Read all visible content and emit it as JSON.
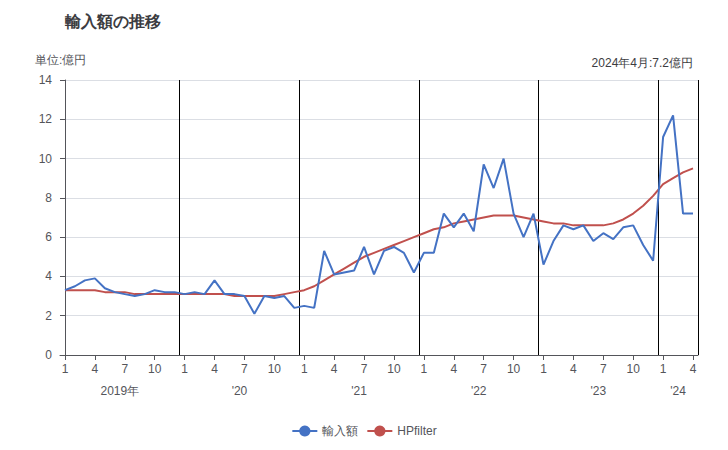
{
  "chart_data": {
    "type": "line",
    "title": "輸入額の推移",
    "ylabel": "単位:億円",
    "annotation": "2024年4月:7.2億円",
    "categories": [
      "1",
      null,
      null,
      "4",
      null,
      null,
      "7",
      null,
      null,
      "10",
      null,
      null,
      "1",
      null,
      null,
      "4",
      null,
      null,
      "7",
      null,
      null,
      "10",
      null,
      null,
      "1",
      null,
      null,
      "4",
      null,
      null,
      "7",
      null,
      null,
      "10",
      null,
      null,
      "1",
      null,
      null,
      "4",
      null,
      null,
      "7",
      null,
      null,
      "10",
      null,
      null,
      "1",
      null,
      null,
      "4",
      null,
      null,
      "7",
      null,
      null,
      "10",
      null,
      null,
      "1",
      null,
      null,
      "4"
    ],
    "year_labels": [
      "2019年",
      "2019年",
      "2019年",
      "2019年",
      "2019年",
      "2019年",
      "2019年",
      "2019年",
      "2019年",
      "2019年",
      "2019年",
      "2019年",
      "'20",
      "'20",
      "'20",
      "'20",
      "'20",
      "'20",
      "'20",
      "'20",
      "'20",
      "'20",
      "'20",
      "'20",
      "'21",
      "'21",
      "'21",
      "'21",
      "'21",
      "'21",
      "'21",
      "'21",
      "'21",
      "'21",
      "'21",
      "'21",
      "'22",
      "'22",
      "'22",
      "'22",
      "'22",
      "'22",
      "'22",
      "'22",
      "'22",
      "'22",
      "'22",
      "'22",
      "'23",
      "'23",
      "'23",
      "'23",
      "'23",
      "'23",
      "'23",
      "'23",
      "'23",
      "'23",
      "'23",
      "'23",
      "'24",
      "'24",
      "'24",
      "'24"
    ],
    "series": [
      {
        "name": "輸入額",
        "color": "#4472C4",
        "values": [
          3.3,
          3.5,
          3.8,
          3.9,
          3.4,
          3.2,
          3.1,
          3.0,
          3.1,
          3.3,
          3.2,
          3.2,
          3.1,
          3.2,
          3.1,
          3.8,
          3.1,
          3.1,
          3.0,
          2.1,
          3.0,
          2.9,
          3.0,
          2.4,
          2.5,
          2.4,
          5.3,
          4.1,
          4.2,
          4.3,
          5.5,
          4.1,
          5.3,
          5.5,
          5.2,
          4.2,
          5.2,
          5.2,
          7.2,
          6.5,
          7.2,
          6.3,
          9.7,
          8.5,
          10.0,
          7.2,
          6.0,
          7.2,
          4.6,
          5.8,
          6.6,
          6.4,
          6.6,
          5.8,
          6.2,
          5.9,
          6.5,
          6.6,
          5.6,
          4.8,
          11.1,
          12.2,
          7.2,
          7.2
        ]
      },
      {
        "name": "HPfilter",
        "color": "#C0504D",
        "values": [
          3.3,
          3.3,
          3.3,
          3.3,
          3.2,
          3.2,
          3.2,
          3.1,
          3.1,
          3.1,
          3.1,
          3.1,
          3.1,
          3.1,
          3.1,
          3.1,
          3.1,
          3.0,
          3.0,
          3.0,
          3.0,
          3.0,
          3.1,
          3.2,
          3.3,
          3.5,
          3.8,
          4.1,
          4.4,
          4.7,
          5.0,
          5.2,
          5.4,
          5.6,
          5.8,
          6.0,
          6.2,
          6.4,
          6.5,
          6.7,
          6.8,
          6.9,
          7.0,
          7.1,
          7.1,
          7.1,
          7.0,
          6.9,
          6.8,
          6.7,
          6.7,
          6.6,
          6.6,
          6.6,
          6.6,
          6.7,
          6.9,
          7.2,
          7.6,
          8.1,
          8.7,
          9.0,
          9.3,
          9.5
        ]
      }
    ],
    "ylim": [
      0,
      14
    ],
    "yticks": [
      0,
      2,
      4,
      6,
      8,
      10,
      12,
      14
    ],
    "grid": true,
    "legend": "bottom"
  }
}
